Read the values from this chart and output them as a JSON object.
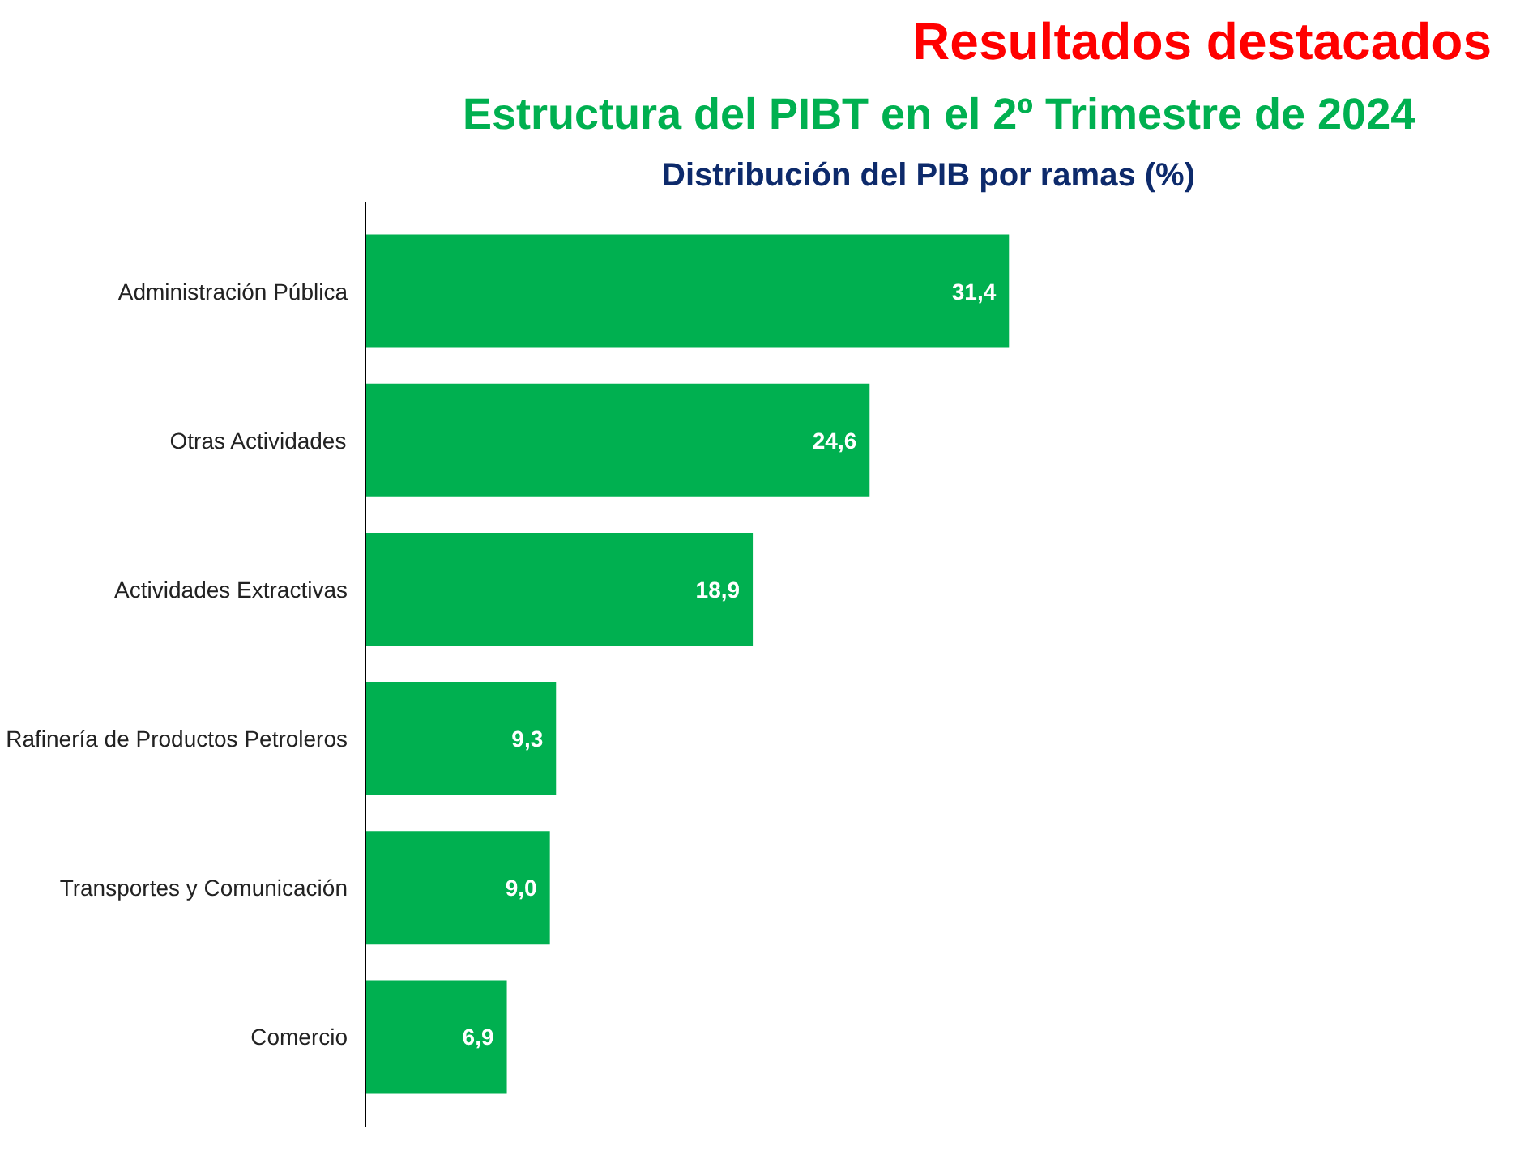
{
  "chart_data": {
    "type": "bar",
    "orientation": "horizontal",
    "title": "Resultados destacados",
    "subtitle": "Estructura del PIBT en el 2º Trimestre de 2024",
    "annotations": [
      "Distribución del PIB por ramas (%)"
    ],
    "categories": [
      "Administración Pública",
      "Otras Actividades",
      "Actividades Extractivas",
      "Rafinería de Productos Petroleros",
      "Transportes y Comunicación",
      "Comercio"
    ],
    "values": [
      31.4,
      24.6,
      18.9,
      9.3,
      9.0,
      6.9
    ],
    "value_labels": [
      "31,4",
      "24,6",
      "18,9",
      "9,3",
      "9,0",
      "6,9"
    ],
    "color": "#00b050",
    "grid": false,
    "tick_labels": "y"
  }
}
